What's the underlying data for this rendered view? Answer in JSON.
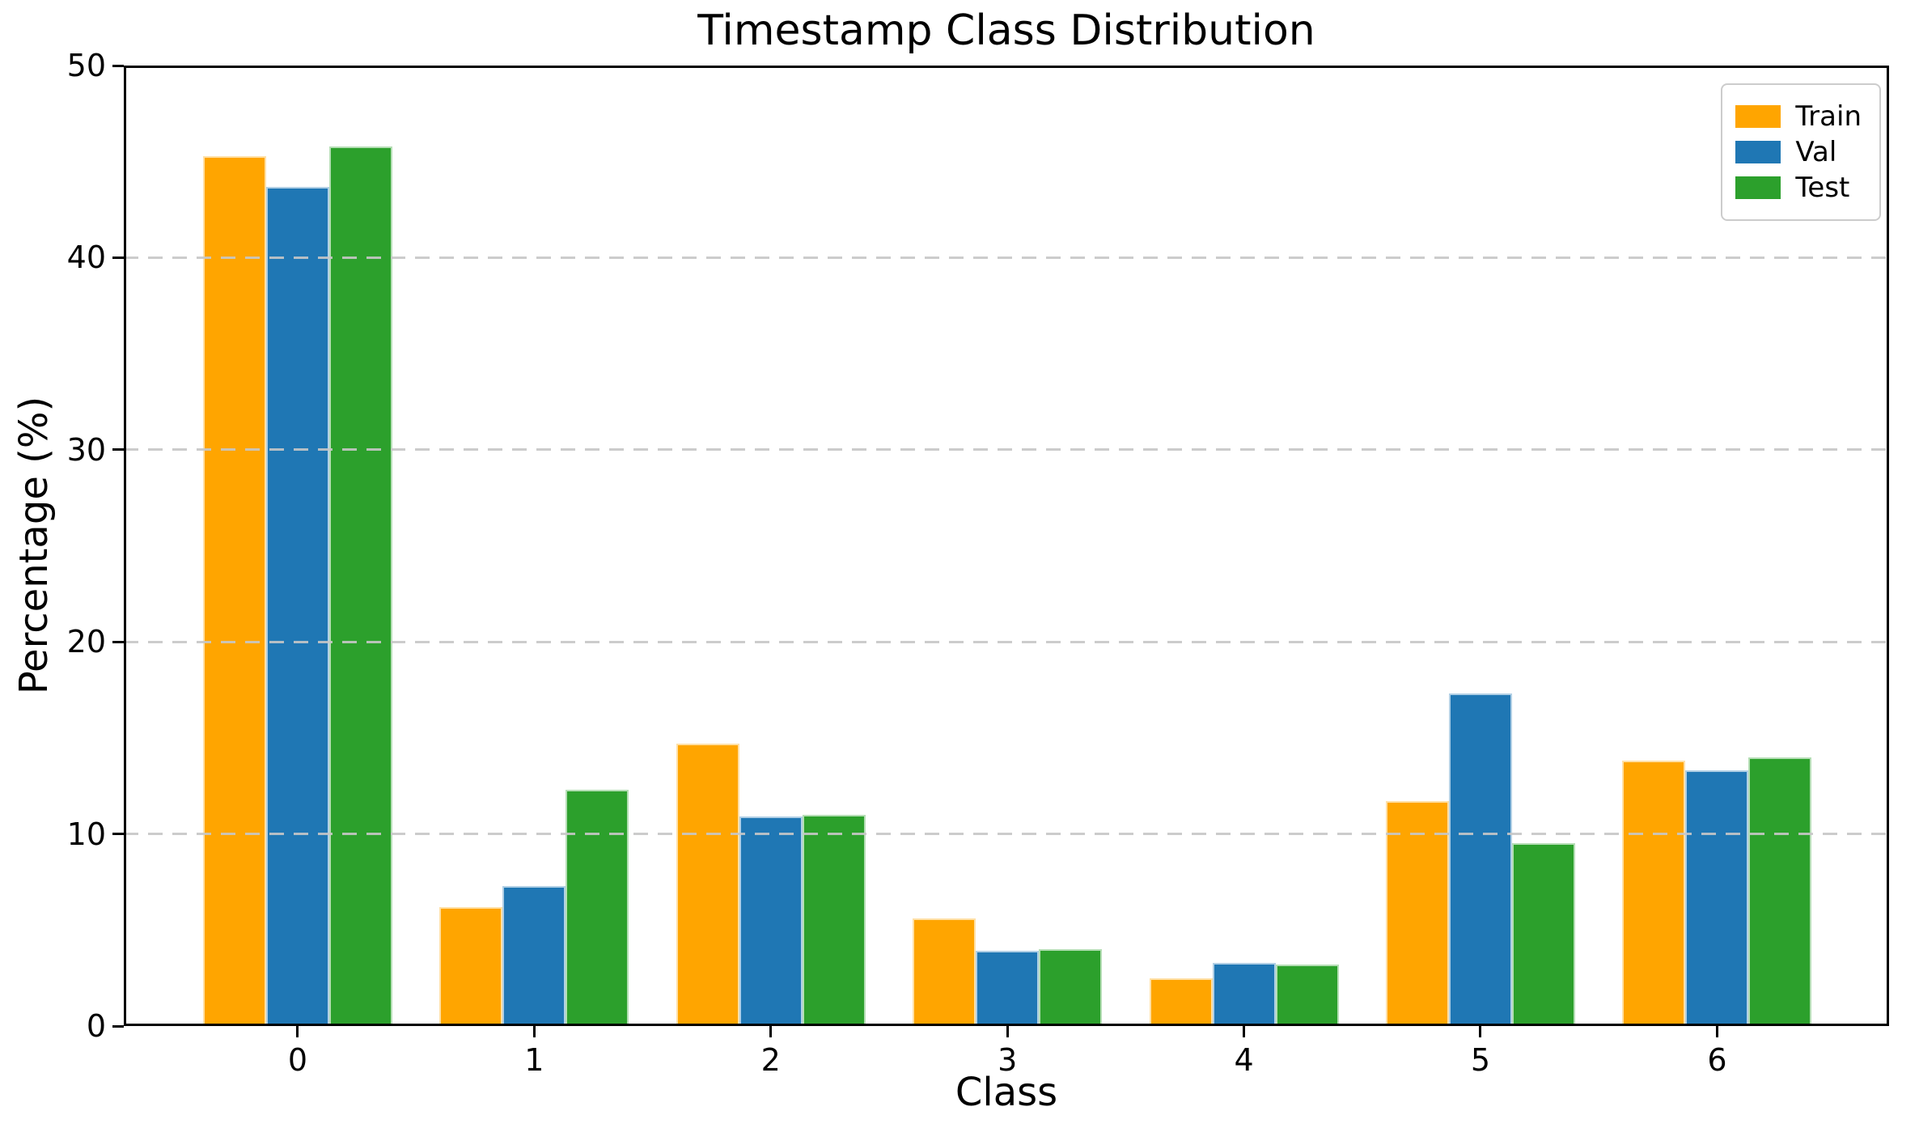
{
  "chart_data": {
    "type": "bar",
    "title": "Timestamp Class Distribution",
    "xlabel": "Class",
    "ylabel": "Percentage (%)",
    "categories": [
      "0",
      "1",
      "2",
      "3",
      "4",
      "5",
      "6"
    ],
    "series": [
      {
        "name": "Train",
        "color": "#ffa500",
        "values": [
          45.3,
          6.2,
          14.7,
          5.6,
          2.5,
          11.7,
          13.8
        ]
      },
      {
        "name": "Val",
        "color": "#1f77b4",
        "values": [
          43.7,
          7.3,
          10.9,
          3.9,
          3.3,
          17.3,
          13.3
        ]
      },
      {
        "name": "Test",
        "color": "#2ca02c",
        "values": [
          45.8,
          12.3,
          11.0,
          4.0,
          3.2,
          9.5,
          14.0
        ]
      }
    ],
    "ylim": [
      0,
      50
    ],
    "yticks": [
      0,
      10,
      20,
      30,
      40,
      50
    ],
    "bar_group_width": 0.8,
    "grid": "horizontal dashed, drawn above bars",
    "grid_color": "#c7c7c7",
    "legend_position": "upper right",
    "background_color": "#ffffff",
    "text_color": "#000000"
  }
}
